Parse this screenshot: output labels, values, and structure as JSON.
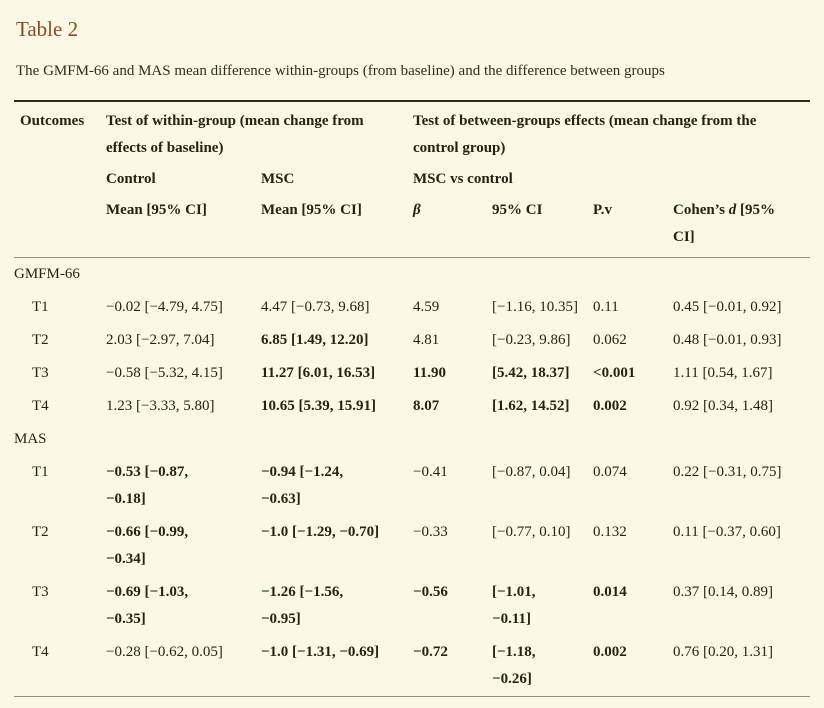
{
  "page": {
    "title": "Table 2",
    "caption": "The GMFM-66 and MAS mean difference within-groups (from baseline) and the difference between groups"
  },
  "colors": {
    "background": "#fcf8e6",
    "title_accent": "#8b4a21",
    "body_text": "#282216",
    "rule_dark": "#2e2a22",
    "rule_light": "#97917f"
  },
  "table": {
    "header": {
      "outcomes": "Outcomes",
      "within_group": "Test of within-group (mean change from effects of baseline)",
      "between_group": "Test of between-groups effects (mean change from the control group)",
      "control": "Control",
      "msc": "MSC",
      "msc_vs_control": "MSC vs control",
      "mean_ci_control": "Mean [95% CI]",
      "mean_ci_msc": "Mean [95% CI]",
      "beta": "β",
      "ci": "95% CI",
      "pv": "P.v",
      "cohens_pre": "Cohen’s ",
      "cohens_d": "d",
      "cohens_post": " [95% CI]"
    },
    "sections": [
      {
        "label": "GMFM-66",
        "rows": [
          {
            "label": "T1",
            "control": "−0.02 [−4.79, 4.75]",
            "msc": "4.47 [−0.73, 9.68]",
            "beta": "4.59",
            "ci": "[−1.16, 10.35]",
            "pv": "0.11",
            "cohens": "0.45 [−0.01, 0.92]"
          },
          {
            "label": "T2",
            "control": "2.03 [−2.97, 7.04]",
            "msc": "6.85 [1.49, 12.20]",
            "beta": "4.81",
            "ci": "[−0.23, 9.86]",
            "pv": "0.062",
            "cohens": "0.48 [−0.01, 0.93]"
          },
          {
            "label": "T3",
            "control": "−0.58 [−5.32, 4.15]",
            "msc": "11.27 [6.01, 16.53]",
            "beta": "11.90",
            "ci": "[5.42, 18.37]",
            "pv": "<0.001",
            "cohens": "1.11 [0.54, 1.67]"
          },
          {
            "label": "T4",
            "control": "1.23 [−3.33, 5.80]",
            "msc": "10.65 [5.39, 15.91]",
            "beta": "8.07",
            "ci": "[1.62, 14.52]",
            "pv": "0.002",
            "cohens": "0.92 [0.34, 1.48]"
          }
        ]
      },
      {
        "label": "MAS",
        "rows": [
          {
            "label": "T1",
            "control": "−0.53 [−0.87, −0.18]",
            "msc": "−0.94 [−1.24, −0.63]",
            "beta": "−0.41",
            "ci": "[−0.87, 0.04]",
            "pv": "0.074",
            "cohens": "0.22 [−0.31, 0.75]"
          },
          {
            "label": "T2",
            "control": "−0.66 [−0.99, −0.34]",
            "msc": "−1.0 [−1.29, −0.70]",
            "beta": "−0.33",
            "ci": "[−0.77, 0.10]",
            "pv": "0.132",
            "cohens": "0.11 [−0.37, 0.60]"
          },
          {
            "label": "T3",
            "control": "−0.69 [−1.03, −0.35]",
            "msc": "−1.26 [−1.56, −0.95]",
            "beta": "−0.56",
            "ci": "[−1.01, −0.11]",
            "pv": "0.014",
            "cohens": "0.37 [0.14, 0.89]"
          },
          {
            "label": "T4",
            "control": "−0.28 [−0.62, 0.05]",
            "msc": "−1.0 [−1.31, −0.69]",
            "beta": "−0.72",
            "ci": "[−1.18, −0.26]",
            "pv": "0.002",
            "cohens": "0.76 [0.20, 1.31]"
          }
        ]
      }
    ]
  }
}
